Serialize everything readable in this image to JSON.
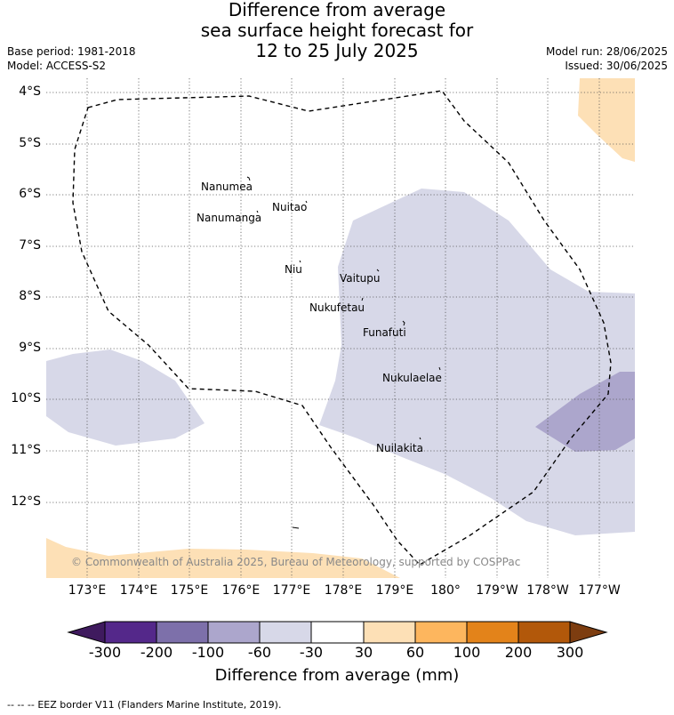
{
  "header": {
    "title_line1": "Difference from average",
    "title_line2": "sea surface height forecast for",
    "title_line3": "12 to 25 July 2025",
    "base_period": "Base period: 1981-2018",
    "model": "Model: ACCESS-S2",
    "model_run": "Model run: 28/06/2025",
    "issued": "Issued: 30/06/2025"
  },
  "map": {
    "lat_labels": [
      "4°S",
      "5°S",
      "6°S",
      "7°S",
      "8°S",
      "9°S",
      "10°S",
      "11°S",
      "12°S"
    ],
    "lon_labels": [
      "173°E",
      "174°E",
      "175°E",
      "176°E",
      "177°E",
      "178°E",
      "179°E",
      "180°",
      "179°W",
      "178°W",
      "177°W"
    ],
    "islands": [
      "Nanumea",
      "Nuitao",
      "Nanumanga",
      "Niu",
      "Vaitupu",
      "Nukufetau",
      "Funafuti",
      "Nukulaelae",
      "Nuilakita"
    ],
    "copyright": "© Commonwealth of Australia 2025, Bureau of Meteorology, supported by COSPPac",
    "colors": {
      "neg_300": "#3f1a5e",
      "neg_200": "#54288a",
      "neg_100": "#7d70aa",
      "neg_60": "#aca6cc",
      "neg_30": "#d7d8e8",
      "neutral": "#ffffff",
      "pos_30": "#fde0b6",
      "pos_60": "#fdb65e",
      "pos_100": "#e3831a",
      "pos_200": "#b2580a",
      "pos_300": "#7d3d10"
    }
  },
  "colorbar": {
    "ticks": [
      "-300",
      "-200",
      "-100",
      "-60",
      "-30",
      "30",
      "60",
      "100",
      "200",
      "300"
    ],
    "title": "Difference from average (mm)"
  },
  "footer": {
    "legend_symbol": "-- -- --",
    "legend_text": "EEZ border V11 (Flanders Marine Institute, 2019)."
  }
}
